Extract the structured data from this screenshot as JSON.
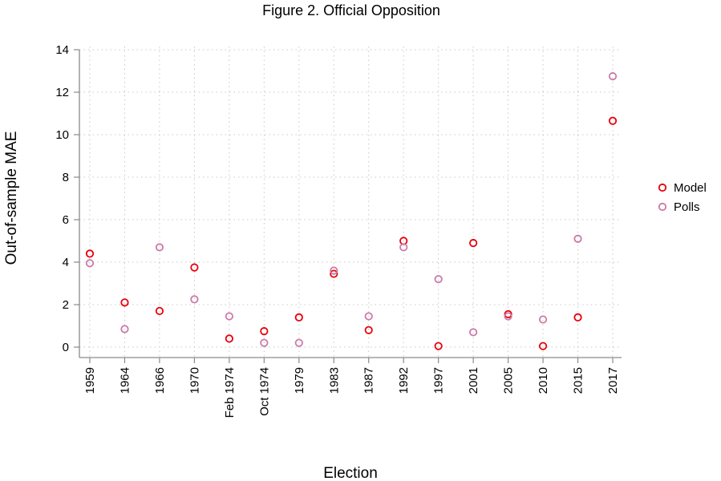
{
  "chart_data": {
    "type": "scatter",
    "title": "Figure 2. Official Opposition",
    "xlabel": "Election",
    "ylabel": "Out-of-sample MAE",
    "categories": [
      "1959",
      "1964",
      "1966",
      "1970",
      "Feb 1974",
      "Oct 1974",
      "1979",
      "1983",
      "1987",
      "1992",
      "1997",
      "2001",
      "2005",
      "2010",
      "2015",
      "2017"
    ],
    "yticks": [
      0,
      2,
      4,
      6,
      8,
      10,
      12,
      14
    ],
    "ylim": [
      -0.5,
      14
    ],
    "grid": true,
    "legend_position": "right",
    "series": [
      {
        "name": "Model",
        "color": "#e8000b",
        "values": [
          4.4,
          2.1,
          1.7,
          3.75,
          0.4,
          0.75,
          1.4,
          3.45,
          0.8,
          5.0,
          0.05,
          4.9,
          1.55,
          0.05,
          1.4,
          10.65
        ]
      },
      {
        "name": "Polls",
        "color": "#cc79a7",
        "values": [
          3.95,
          0.85,
          4.7,
          2.25,
          1.45,
          0.2,
          0.2,
          3.6,
          1.45,
          4.7,
          3.2,
          0.7,
          1.45,
          1.3,
          5.1,
          12.75
        ]
      }
    ]
  }
}
